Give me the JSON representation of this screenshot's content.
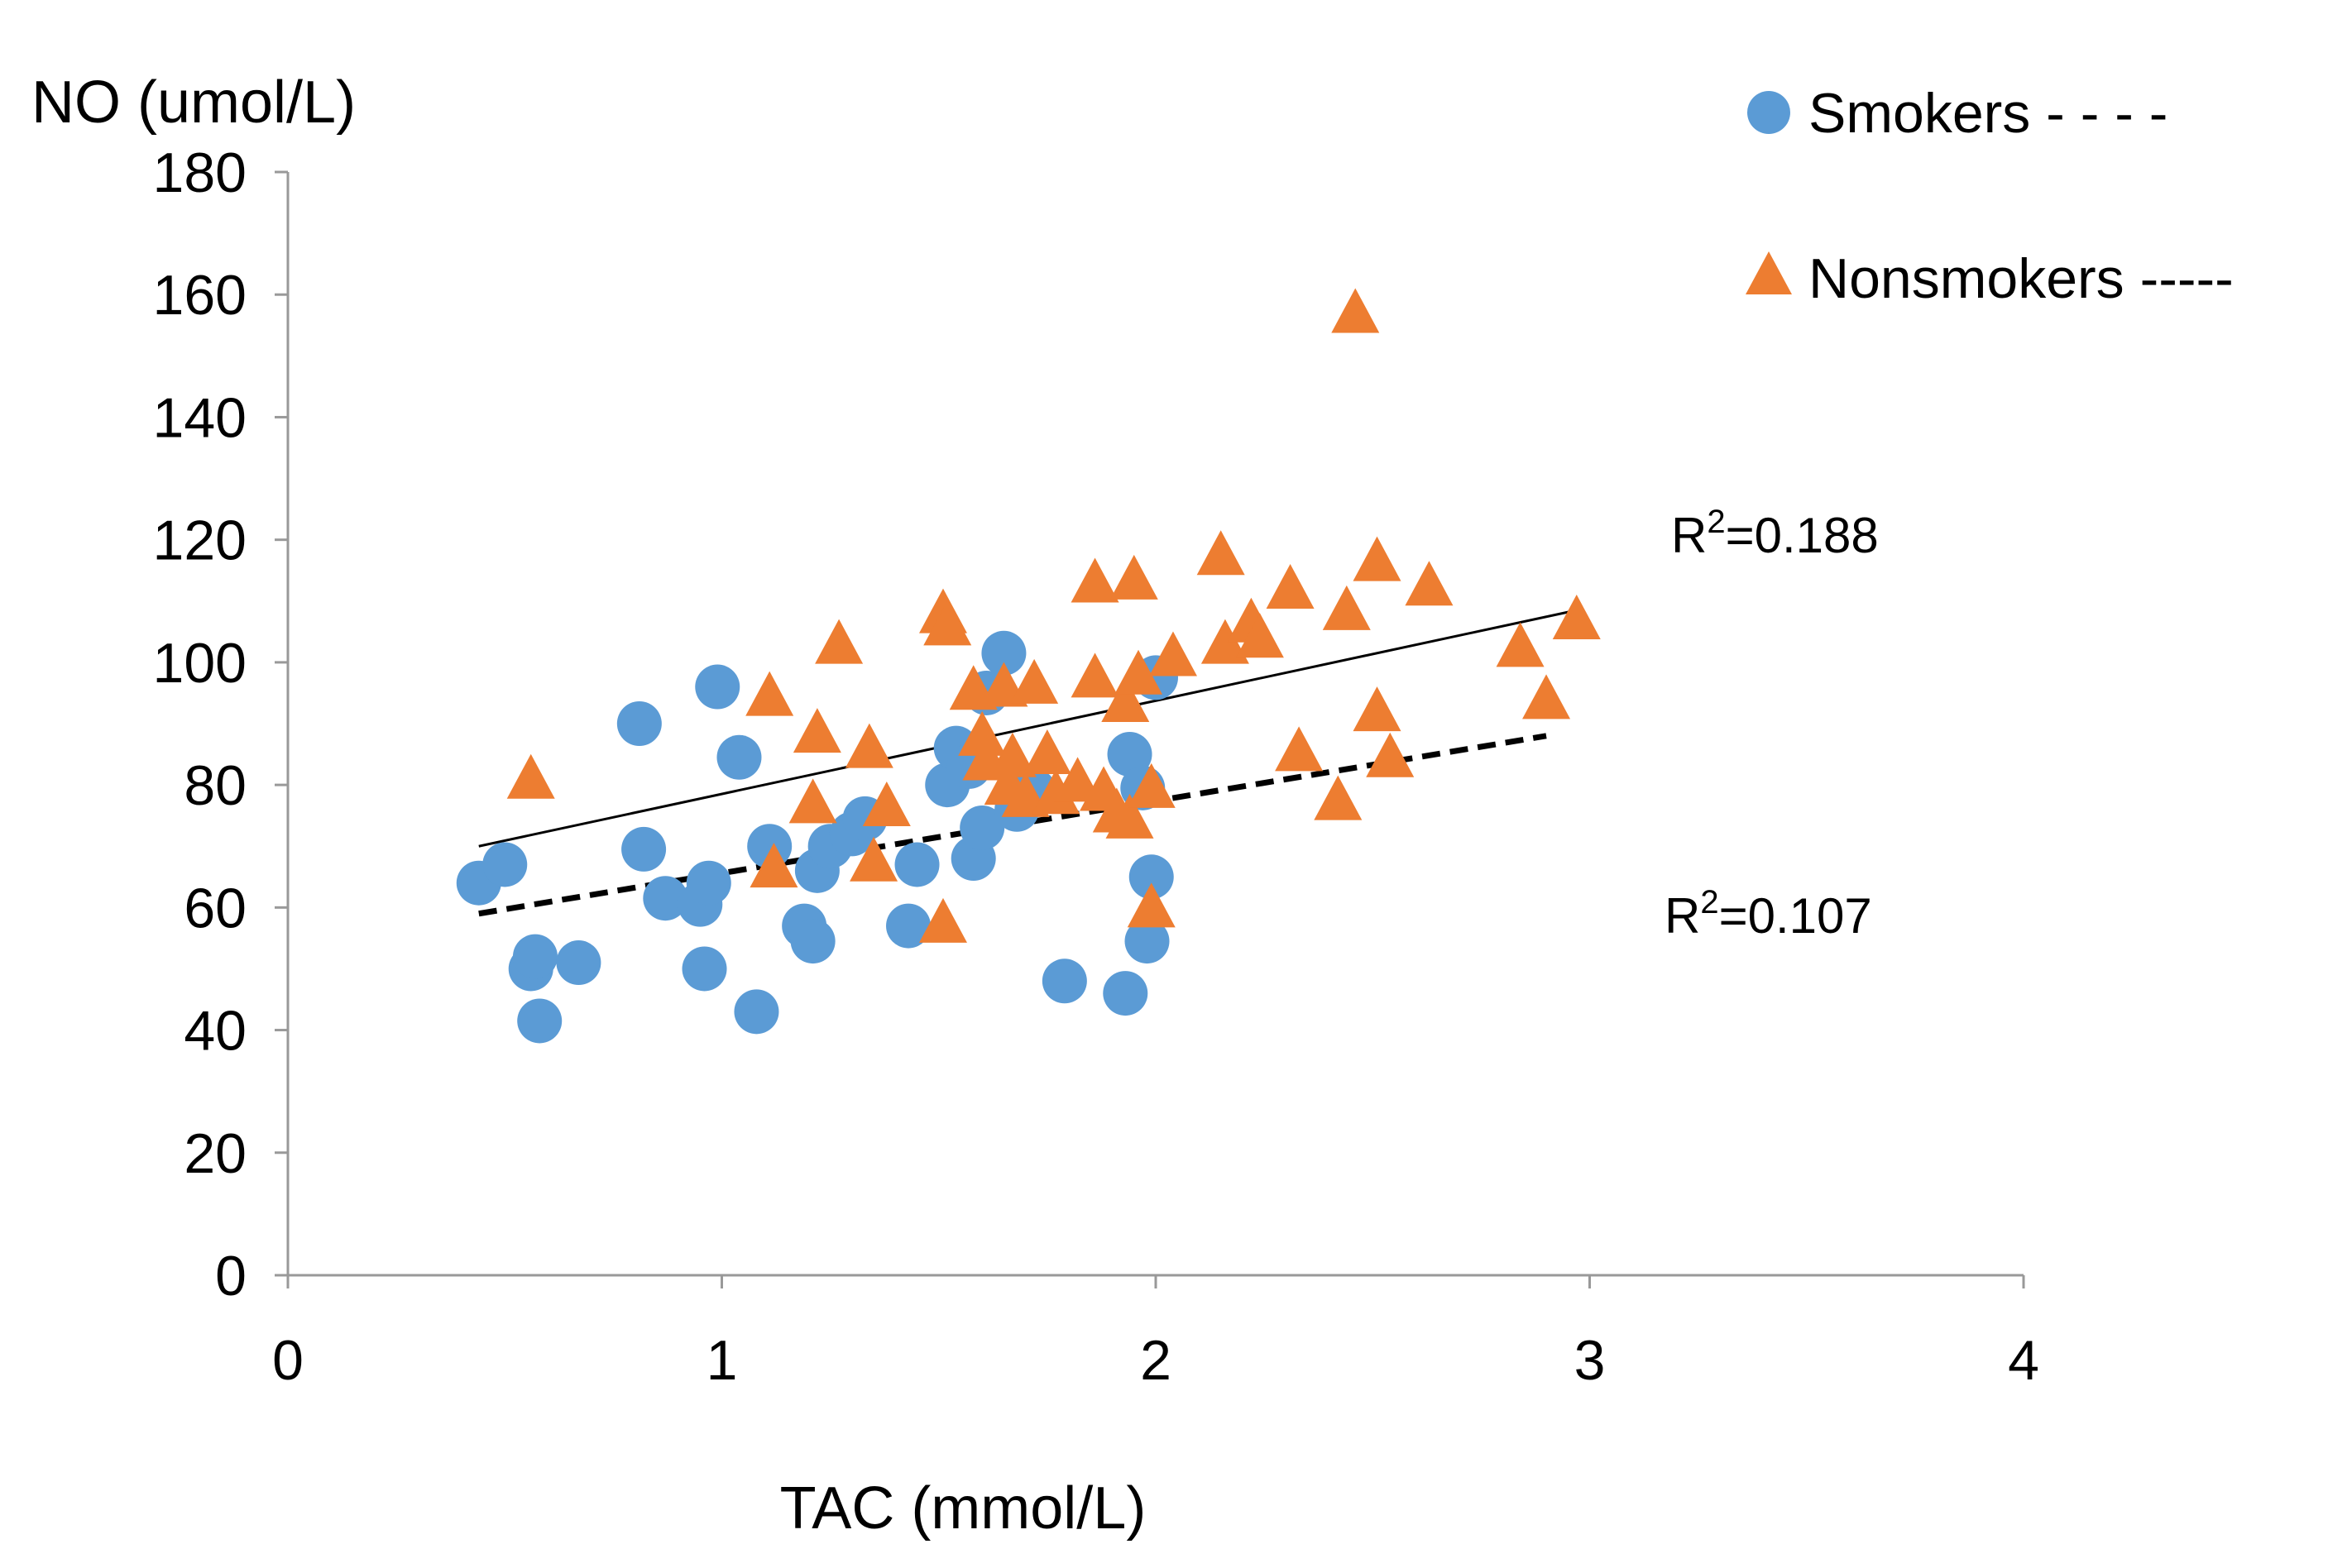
{
  "chart_data": {
    "type": "scatter",
    "title": "",
    "xlabel": "TAC (mmol/L)",
    "ylabel": "NO (umol/L)",
    "xlim": [
      0,
      4
    ],
    "ylim": [
      0,
      180
    ],
    "xticks": [
      "0",
      "1",
      "2",
      "3",
      "4"
    ],
    "yticks": [
      "0",
      "20",
      "40",
      "60",
      "80",
      "100",
      "120",
      "140",
      "160",
      "180"
    ],
    "grid": false,
    "legend_position": "top-right",
    "series": [
      {
        "name": "Smokers - - - -",
        "marker": "circle",
        "color": "#5B9BD5",
        "points": [
          [
            0.44,
            64
          ],
          [
            0.5,
            67
          ],
          [
            0.56,
            50
          ],
          [
            0.57,
            52
          ],
          [
            0.58,
            41.5
          ],
          [
            0.67,
            51
          ],
          [
            0.81,
            90
          ],
          [
            0.82,
            69.5
          ],
          [
            0.87,
            61.5
          ],
          [
            0.95,
            60.5
          ],
          [
            0.96,
            50
          ],
          [
            0.97,
            64
          ],
          [
            0.99,
            96
          ],
          [
            1.04,
            84.5
          ],
          [
            1.08,
            43
          ],
          [
            1.11,
            70
          ],
          [
            1.19,
            57
          ],
          [
            1.21,
            54.5
          ],
          [
            1.22,
            66
          ],
          [
            1.25,
            70
          ],
          [
            1.3,
            72
          ],
          [
            1.33,
            74.5
          ],
          [
            1.43,
            57
          ],
          [
            1.45,
            67
          ],
          [
            1.52,
            80
          ],
          [
            1.54,
            86
          ],
          [
            1.57,
            83
          ],
          [
            1.58,
            68
          ],
          [
            1.6,
            73
          ],
          [
            1.61,
            95
          ],
          [
            1.65,
            101.5
          ],
          [
            1.68,
            76
          ],
          [
            1.72,
            79
          ],
          [
            1.79,
            48
          ],
          [
            1.93,
            46
          ],
          [
            1.94,
            85
          ],
          [
            1.98,
            54.5
          ],
          [
            1.99,
            65
          ],
          [
            2.0,
            97.5
          ],
          [
            1.97,
            79.5
          ]
        ]
      },
      {
        "name": "Nonsmokers -----",
        "marker": "triangle",
        "color": "#ED7D31",
        "points": [
          [
            0.56,
            81
          ],
          [
            1.11,
            94.5
          ],
          [
            1.12,
            66.5
          ],
          [
            1.21,
            77
          ],
          [
            1.22,
            88.5
          ],
          [
            1.27,
            103
          ],
          [
            1.34,
            86
          ],
          [
            1.35,
            67.5
          ],
          [
            1.38,
            76.5
          ],
          [
            1.51,
            57.5
          ],
          [
            1.51,
            108
          ],
          [
            1.52,
            106
          ],
          [
            1.58,
            95.5
          ],
          [
            1.6,
            88
          ],
          [
            1.61,
            84
          ],
          [
            1.65,
            96
          ],
          [
            1.66,
            80
          ],
          [
            1.67,
            84.5
          ],
          [
            1.7,
            78
          ],
          [
            1.72,
            96.5
          ],
          [
            1.75,
            85
          ],
          [
            1.77,
            78.5
          ],
          [
            1.82,
            80.5
          ],
          [
            1.86,
            113
          ],
          [
            1.86,
            97.5
          ],
          [
            1.88,
            79
          ],
          [
            1.91,
            75.5
          ],
          [
            1.93,
            93.5
          ],
          [
            1.94,
            74.5
          ],
          [
            1.95,
            113.5
          ],
          [
            1.96,
            98
          ],
          [
            1.99,
            60
          ],
          [
            1.99,
            79.5
          ],
          [
            2.04,
            101
          ],
          [
            2.15,
            117.5
          ],
          [
            2.16,
            103
          ],
          [
            2.22,
            106.5
          ],
          [
            2.24,
            104
          ],
          [
            2.31,
            112
          ],
          [
            2.33,
            85.5
          ],
          [
            2.42,
            77.5
          ],
          [
            2.44,
            108.5
          ],
          [
            2.46,
            157
          ],
          [
            2.51,
            116.5
          ],
          [
            2.51,
            92
          ],
          [
            2.54,
            84.5
          ],
          [
            2.63,
            112.5
          ],
          [
            2.84,
            102.5
          ],
          [
            2.9,
            94
          ],
          [
            2.97,
            107
          ]
        ]
      }
    ],
    "trendlines": [
      {
        "series": "Nonsmokers -----",
        "style": "solid",
        "x": [
          0.44,
          2.97
        ],
        "y": [
          70,
          108.5
        ],
        "r2_label": "R²=0.188"
      },
      {
        "series": "Smokers - - - -",
        "style": "dashed",
        "x": [
          0.44,
          2.9
        ],
        "y": [
          59,
          88
        ],
        "r2_label": "R²=0.107"
      }
    ]
  }
}
